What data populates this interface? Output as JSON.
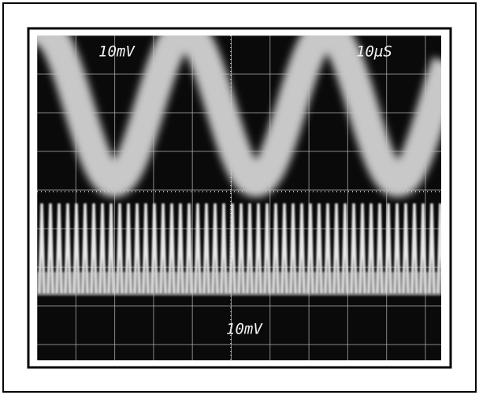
{
  "screen": {
    "channel_1_scale": "10mV",
    "time_scale": "10µS",
    "channel_2_scale": "10mV"
  }
}
